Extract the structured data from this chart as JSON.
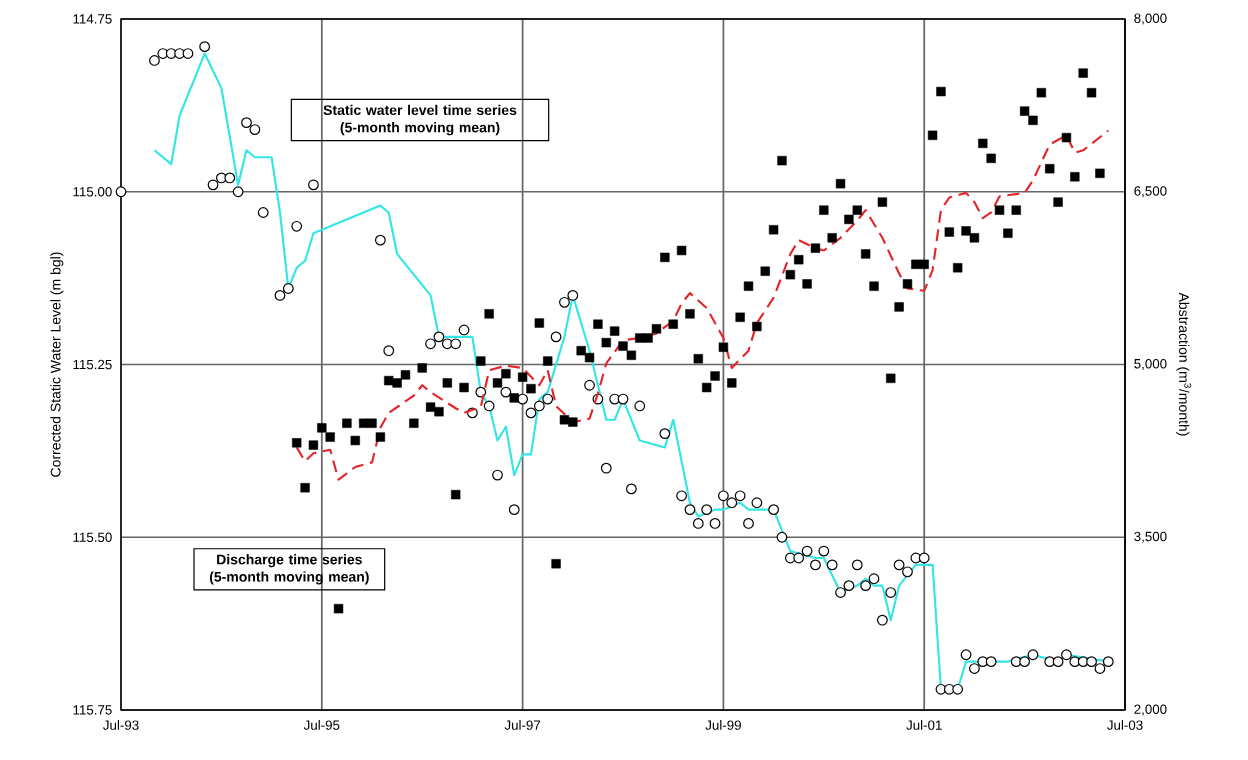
{
  "chart_data": {
    "type": "scatter",
    "ylabel": "Corrected Static Water Level (m bgl)",
    "y2label": "Abstraction (m$^{3}$/month)",
    "annotations": [
      "Static water level time series (5-month moving mean)",
      "Discharge time series (5-month moving mean)"
    ],
    "xlim": [
      "1993-07",
      "2003-07"
    ],
    "xticks": [
      {
        "value": "1993-07",
        "label": "Jul-93"
      },
      {
        "value": "1995-07",
        "label": "Jul-95"
      },
      {
        "value": "1997-07",
        "label": "Jul-97"
      },
      {
        "value": "1999-07",
        "label": "Jul-99"
      },
      {
        "value": "2001-07",
        "label": "Jul-01"
      },
      {
        "value": "2003-07",
        "label": "Jul-03"
      }
    ],
    "ylim": [
      115.75,
      114.75
    ],
    "yticks": [
      {
        "value": 114.75,
        "label": "114.75"
      },
      {
        "value": 115.0,
        "label": "115.00"
      },
      {
        "value": 115.25,
        "label": "115.25"
      },
      {
        "value": 115.5,
        "label": "115.50"
      },
      {
        "value": 115.75,
        "label": "115.75"
      }
    ],
    "y2lim": [
      2000,
      8000
    ],
    "y2ticks": [
      {
        "value": 2000,
        "label": "2,000"
      },
      {
        "value": 3500,
        "label": "3,500"
      },
      {
        "value": 5000,
        "label": "5,000"
      },
      {
        "value": 6500,
        "label": "6,500"
      },
      {
        "value": 8000,
        "label": "8,000"
      }
    ],
    "grid": true,
    "series": [
      {
        "marker": "circle",
        "color": "#000000",
        "x": [
          "1993-07",
          "1993-11",
          "1993-12",
          "1994-01",
          "1994-02",
          "1994-03",
          "1994-05",
          "1994-06",
          "1994-07",
          "1994-08",
          "1994-09",
          "1994-10",
          "1994-11",
          "1994-12",
          "1995-02",
          "1995-03",
          "1995-04",
          "1995-06",
          "1996-02",
          "1996-03",
          "1996-08",
          "1996-09",
          "1996-10",
          "1996-11",
          "1996-12",
          "1997-01",
          "1997-02",
          "1997-03",
          "1997-04",
          "1997-05",
          "1997-06",
          "1997-07",
          "1997-08",
          "1997-09",
          "1997-10",
          "1997-11",
          "1997-12",
          "1998-01",
          "1998-03",
          "1998-04",
          "1998-05",
          "1998-06",
          "1998-07",
          "1998-08",
          "1998-09",
          "1998-12",
          "1999-02",
          "1999-03",
          "1999-04",
          "1999-05",
          "1999-06",
          "1999-07",
          "1999-08",
          "1999-09",
          "1999-10",
          "1999-11",
          "2000-01",
          "2000-02",
          "2000-03",
          "2000-04",
          "2000-05",
          "2000-06",
          "2000-07",
          "2000-08",
          "2000-09",
          "2000-10",
          "2000-11",
          "2000-12",
          "2001-01",
          "2001-02",
          "2001-03",
          "2001-04",
          "2001-05",
          "2001-06",
          "2001-07",
          "2001-09",
          "2001-10",
          "2001-11",
          "2001-12",
          "2002-01",
          "2002-02",
          "2002-03",
          "2002-06",
          "2002-07",
          "2002-08",
          "2002-10",
          "2002-11",
          "2002-12",
          "2003-01",
          "2003-02",
          "2003-03",
          "2003-04",
          "2003-05"
        ],
        "values": [
          115.0,
          114.81,
          114.8,
          114.8,
          114.8,
          114.8,
          114.79,
          114.99,
          114.98,
          114.98,
          115.0,
          114.9,
          114.91,
          115.03,
          115.15,
          115.14,
          115.05,
          114.99,
          115.07,
          115.23,
          115.22,
          115.21,
          115.22,
          115.22,
          115.2,
          115.32,
          115.29,
          115.31,
          115.41,
          115.29,
          115.46,
          115.3,
          115.32,
          115.31,
          115.3,
          115.21,
          115.16,
          115.15,
          115.28,
          115.3,
          115.4,
          115.3,
          115.3,
          115.43,
          115.31,
          115.35,
          115.44,
          115.46,
          115.48,
          115.46,
          115.48,
          115.44,
          115.45,
          115.44,
          115.48,
          115.45,
          115.46,
          115.5,
          115.53,
          115.53,
          115.52,
          115.54,
          115.52,
          115.54,
          115.58,
          115.57,
          115.54,
          115.57,
          115.56,
          115.62,
          115.58,
          115.54,
          115.55,
          115.53,
          115.53,
          115.72,
          115.72,
          115.72,
          115.67,
          115.69,
          115.68,
          115.68,
          115.68,
          115.68,
          115.67,
          115.68,
          115.68,
          115.67,
          115.68,
          115.68,
          115.68,
          115.69,
          115.68
        ]
      },
      {
        "type": "line",
        "line_style": "solid",
        "color": "#33e6e6",
        "x": [
          "1993-11",
          "1994-01",
          "1994-02",
          "1994-05",
          "1994-07",
          "1994-08",
          "1994-09",
          "1994-10",
          "1994-11",
          "1995-01",
          "1995-02",
          "1995-03",
          "1995-04",
          "1995-05",
          "1995-06",
          "1996-02",
          "1996-03",
          "1996-04",
          "1996-08",
          "1996-09",
          "1997-01",
          "1997-02",
          "1997-03",
          "1997-04",
          "1997-05",
          "1997-06",
          "1997-07",
          "1997-08",
          "1997-09",
          "1997-10",
          "1997-12",
          "1998-01",
          "1998-03",
          "1998-05",
          "1998-06",
          "1998-07",
          "1998-09",
          "1998-12",
          "1999-01",
          "1999-03",
          "1999-04",
          "1999-06",
          "1999-07",
          "1999-09",
          "1999-10",
          "2000-01",
          "2000-03",
          "2000-06",
          "2000-07",
          "2000-09",
          "2000-11",
          "2000-12",
          "2001-01",
          "2001-02",
          "2001-03",
          "2001-04",
          "2001-06",
          "2001-08",
          "2001-09",
          "2001-10",
          "2001-11",
          "2001-12",
          "2002-01",
          "2002-05",
          "2002-08",
          "2002-11",
          "2002-12",
          "2003-05"
        ],
        "values": [
          114.94,
          114.96,
          114.89,
          114.8,
          114.85,
          114.92,
          114.99,
          114.94,
          114.95,
          114.95,
          115.03,
          115.14,
          115.11,
          115.1,
          115.06,
          115.02,
          115.03,
          115.09,
          115.15,
          115.21,
          115.21,
          115.29,
          115.31,
          115.36,
          115.34,
          115.41,
          115.38,
          115.38,
          115.3,
          115.29,
          115.21,
          115.15,
          115.23,
          115.33,
          115.33,
          115.3,
          115.36,
          115.37,
          115.33,
          115.45,
          115.47,
          115.46,
          115.46,
          115.45,
          115.46,
          115.46,
          115.52,
          115.53,
          115.53,
          115.58,
          115.57,
          115.56,
          115.57,
          115.57,
          115.62,
          115.57,
          115.54,
          115.54,
          115.72,
          115.72,
          115.72,
          115.68,
          115.68,
          115.68,
          115.67,
          115.68,
          115.67,
          115.68
        ]
      },
      {
        "marker": "square",
        "axis": "y2",
        "color": "#000000",
        "x": [
          "1995-04",
          "1995-05",
          "1995-06",
          "1995-07",
          "1995-08",
          "1995-09",
          "1995-10",
          "1995-11",
          "1995-12",
          "1996-01",
          "1996-02",
          "1996-03",
          "1996-04",
          "1996-05",
          "1996-06",
          "1996-07",
          "1996-08",
          "1996-09",
          "1996-10",
          "1996-11",
          "1996-12",
          "1997-02",
          "1997-03",
          "1997-04",
          "1997-05",
          "1997-06",
          "1997-07",
          "1997-08",
          "1997-09",
          "1997-10",
          "1997-11",
          "1997-12",
          "1998-01",
          "1998-02",
          "1998-03",
          "1998-04",
          "1998-05",
          "1998-06",
          "1998-07",
          "1998-08",
          "1998-09",
          "1998-10",
          "1998-11",
          "1998-12",
          "1999-01",
          "1999-02",
          "1999-03",
          "1999-04",
          "1999-05",
          "1999-06",
          "1999-07",
          "1999-08",
          "1999-09",
          "1999-10",
          "1999-11",
          "1999-12",
          "2000-01",
          "2000-02",
          "2000-03",
          "2000-04",
          "2000-05",
          "2000-06",
          "2000-07",
          "2000-08",
          "2000-09",
          "2000-10",
          "2000-11",
          "2000-12",
          "2001-01",
          "2001-02",
          "2001-03",
          "2001-04",
          "2001-05",
          "2001-06",
          "2001-07",
          "2001-08",
          "2001-09",
          "2001-10",
          "2001-11",
          "2001-12",
          "2002-01",
          "2002-02",
          "2002-03",
          "2002-04",
          "2002-05",
          "2002-06",
          "2002-07",
          "2002-08",
          "2002-09",
          "2002-10",
          "2002-11",
          "2002-12",
          "2003-01",
          "2003-02",
          "2003-03",
          "2003-04"
        ],
        "values": [
          4320,
          3930,
          4300,
          4450,
          4370,
          2880,
          4490,
          4340,
          4490,
          4490,
          4370,
          4860,
          4840,
          4910,
          4490,
          4970,
          4630,
          4590,
          4840,
          3870,
          4800,
          5030,
          5440,
          4840,
          4920,
          4710,
          4890,
          4790,
          5360,
          5030,
          3270,
          4520,
          4500,
          5120,
          5060,
          5350,
          5190,
          5290,
          5160,
          5080,
          5230,
          5230,
          5310,
          5930,
          5350,
          5990,
          5440,
          5050,
          4800,
          4900,
          5150,
          4840,
          5410,
          5680,
          5330,
          5810,
          6170,
          6770,
          5780,
          5910,
          5700,
          6010,
          6340,
          6100,
          6570,
          6260,
          6340,
          5960,
          5680,
          6410,
          4880,
          5500,
          5700,
          5870,
          5870,
          6990,
          7370,
          6150,
          5840,
          6160,
          6100,
          6920,
          6790,
          6340,
          6140,
          6340,
          7200,
          7120,
          7360,
          6700,
          6410,
          6970,
          6630,
          7530,
          7360,
          6660
        ]
      },
      {
        "type": "line",
        "line_style": "dashed",
        "axis": "y2",
        "color": "#e3262b",
        "x": [
          "1995-04",
          "1995-05",
          "1995-06",
          "1995-08",
          "1995-09",
          "1995-11",
          "1996-01",
          "1996-02",
          "1996-03",
          "1996-06",
          "1996-07",
          "1996-08",
          "1996-11",
          "1996-12",
          "1997-02",
          "1997-03",
          "1997-05",
          "1997-07",
          "1997-09",
          "1997-10",
          "1997-11",
          "1998-01",
          "1998-03",
          "1998-04",
          "1998-05",
          "1998-07",
          "1998-09",
          "1998-11",
          "1999-01",
          "1999-02",
          "1999-03",
          "1999-05",
          "1999-07",
          "1999-08",
          "1999-10",
          "1999-11",
          "2000-01",
          "2000-03",
          "2000-04",
          "2000-06",
          "2000-07",
          "2000-09",
          "2000-11",
          "2000-12",
          "2001-01",
          "2001-02",
          "2001-04",
          "2001-05",
          "2001-07",
          "2001-08",
          "2001-09",
          "2001-10",
          "2001-12",
          "2002-01",
          "2002-02",
          "2002-03",
          "2002-04",
          "2002-07",
          "2002-08",
          "2002-10",
          "2002-12",
          "2003-01",
          "2003-02",
          "2003-05"
        ],
        "values": [
          4280,
          4160,
          4230,
          4260,
          4000,
          4110,
          4150,
          4450,
          4580,
          4730,
          4820,
          4760,
          4620,
          4580,
          4630,
          4950,
          4990,
          4970,
          4820,
          4950,
          4640,
          4500,
          4530,
          4750,
          5010,
          5210,
          5230,
          5270,
          5380,
          5530,
          5620,
          5490,
          5230,
          4970,
          5120,
          5360,
          5580,
          5960,
          6080,
          6010,
          5990,
          6100,
          6250,
          6340,
          6220,
          6100,
          5790,
          5660,
          5640,
          5820,
          6340,
          6450,
          6490,
          6410,
          6270,
          6320,
          6460,
          6490,
          6600,
          6910,
          6990,
          6840,
          6860,
          7030
        ]
      }
    ]
  }
}
